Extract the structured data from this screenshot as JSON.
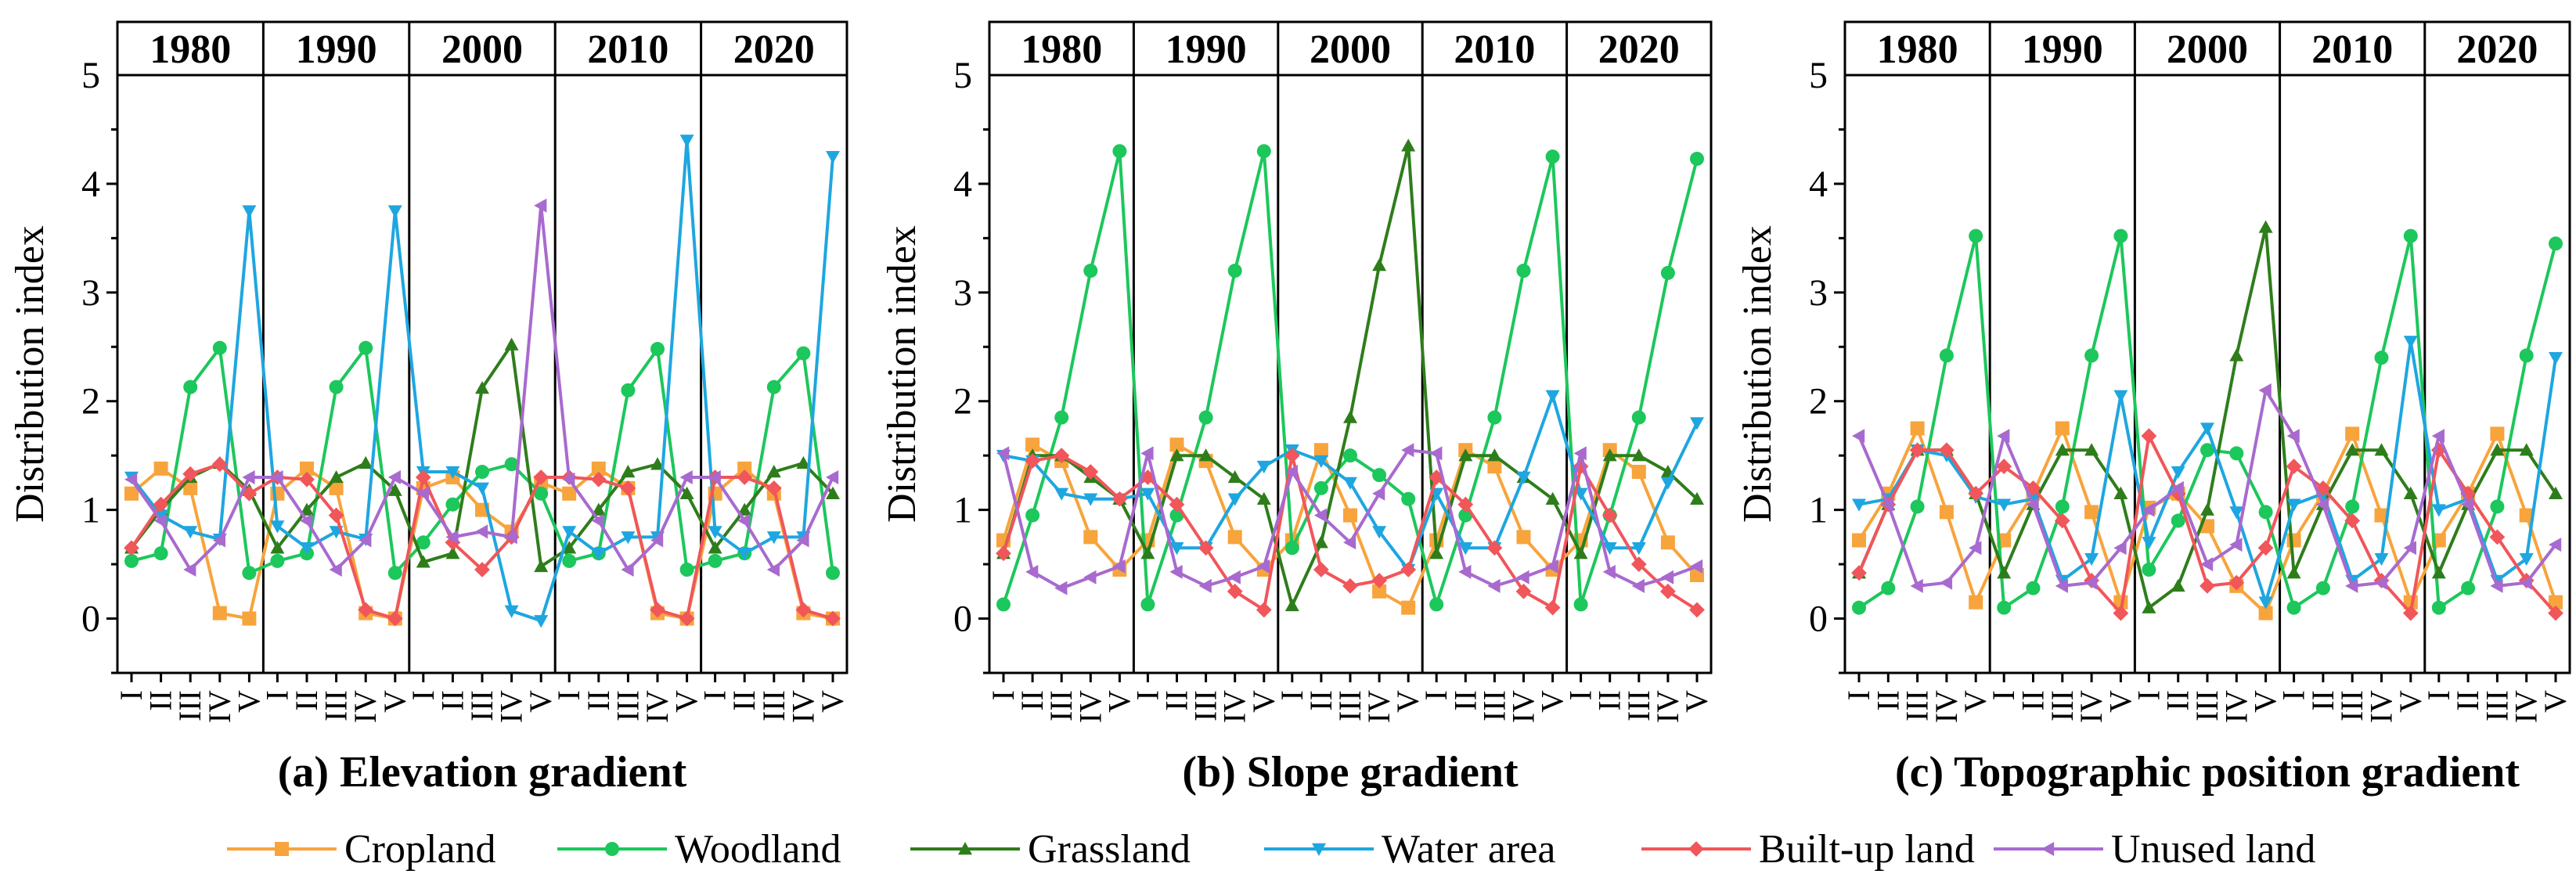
{
  "figure": {
    "ylabel": "Distribution index",
    "years": [
      "1980",
      "1990",
      "2000",
      "2010",
      "2020"
    ],
    "ticks": [
      "I",
      "II",
      "III",
      "IV",
      "V"
    ],
    "yticks": [
      0,
      1,
      2,
      3,
      4,
      5
    ],
    "ylim": [
      -0.5,
      5
    ]
  },
  "legend": [
    {
      "name": "Cropland",
      "color": "#F7A43C",
      "marker": "square"
    },
    {
      "name": "Woodland",
      "color": "#1CC75B",
      "marker": "circle"
    },
    {
      "name": "Grassland",
      "color": "#2E7D1B",
      "marker": "triangle-up"
    },
    {
      "name": "Water area",
      "color": "#1EA6E0",
      "marker": "triangle-down"
    },
    {
      "name": "Built-up land",
      "color": "#F0565A",
      "marker": "diamond"
    },
    {
      "name": "Unused land",
      "color": "#A86ACF",
      "marker": "triangle-left"
    }
  ],
  "chart_data": [
    {
      "type": "line",
      "title": "(a) Elevation gradient",
      "ylabel": "Distribution index",
      "ylim": [
        -0.5,
        5
      ],
      "groups": [
        "1980",
        "1990",
        "2000",
        "2010",
        "2020"
      ],
      "categories": [
        "I",
        "II",
        "III",
        "IV",
        "V"
      ],
      "series": [
        {
          "name": "Cropland",
          "values": [
            [
              1.15,
              1.38,
              1.2,
              0.05,
              0.0
            ],
            [
              1.15,
              1.38,
              1.2,
              0.05,
              0.0
            ],
            [
              1.2,
              1.3,
              1.0,
              0.8,
              1.25
            ],
            [
              1.15,
              1.38,
              1.2,
              0.05,
              0.0
            ],
            [
              1.15,
              1.38,
              1.15,
              0.05,
              0.0
            ]
          ]
        },
        {
          "name": "Woodland",
          "values": [
            [
              0.53,
              0.6,
              2.13,
              2.49,
              0.42
            ],
            [
              0.53,
              0.6,
              2.13,
              2.49,
              0.42
            ],
            [
              0.7,
              1.05,
              1.35,
              1.42,
              1.15
            ],
            [
              0.53,
              0.6,
              2.1,
              2.48,
              0.45
            ],
            [
              0.53,
              0.6,
              2.13,
              2.44,
              0.42
            ]
          ]
        },
        {
          "name": "Grassland",
          "values": [
            [
              0.65,
              1.0,
              1.3,
              1.43,
              1.18
            ],
            [
              0.65,
              1.0,
              1.3,
              1.43,
              1.18
            ],
            [
              0.52,
              0.6,
              2.12,
              2.52,
              0.48
            ],
            [
              0.65,
              1.0,
              1.35,
              1.42,
              1.15
            ],
            [
              0.65,
              1.0,
              1.35,
              1.43,
              1.15
            ]
          ]
        },
        {
          "name": "Water area",
          "values": [
            [
              1.3,
              0.95,
              0.8,
              0.73,
              3.75
            ],
            [
              0.85,
              0.65,
              0.8,
              0.73,
              3.75
            ],
            [
              1.35,
              1.35,
              1.2,
              0.07,
              -0.02
            ],
            [
              0.8,
              0.6,
              0.75,
              0.75,
              4.4
            ],
            [
              0.8,
              0.6,
              0.75,
              0.75,
              4.25
            ]
          ]
        },
        {
          "name": "Built-up land",
          "values": [
            [
              0.65,
              1.05,
              1.33,
              1.42,
              1.15
            ],
            [
              1.3,
              1.28,
              0.95,
              0.08,
              0.0
            ],
            [
              1.3,
              0.7,
              0.45,
              0.75,
              1.3
            ],
            [
              1.3,
              1.28,
              1.2,
              0.08,
              0.0
            ],
            [
              1.3,
              1.3,
              1.2,
              0.08,
              0.0
            ]
          ]
        },
        {
          "name": "Unused land",
          "values": [
            [
              1.28,
              0.9,
              0.45,
              0.72,
              1.3
            ],
            [
              1.3,
              0.9,
              0.45,
              0.72,
              1.3
            ],
            [
              1.15,
              0.75,
              0.8,
              0.75,
              3.8
            ],
            [
              1.28,
              0.9,
              0.45,
              0.72,
              1.3
            ],
            [
              1.3,
              0.9,
              0.45,
              0.72,
              1.3
            ]
          ]
        }
      ]
    },
    {
      "type": "line",
      "title": "(b) Slope gradient",
      "ylabel": "Distribution index",
      "ylim": [
        -0.5,
        5
      ],
      "groups": [
        "1980",
        "1990",
        "2000",
        "2010",
        "2020"
      ],
      "categories": [
        "I",
        "II",
        "III",
        "IV",
        "V"
      ],
      "series": [
        {
          "name": "Cropland",
          "values": [
            [
              0.72,
              1.6,
              1.45,
              0.75,
              0.45
            ],
            [
              0.72,
              1.6,
              1.45,
              0.75,
              0.45
            ],
            [
              0.72,
              1.55,
              0.95,
              0.25,
              0.1
            ],
            [
              0.72,
              1.55,
              1.4,
              0.75,
              0.45
            ],
            [
              0.72,
              1.55,
              1.35,
              0.7,
              0.4
            ]
          ]
        },
        {
          "name": "Woodland",
          "values": [
            [
              0.13,
              0.95,
              1.85,
              3.2,
              4.3
            ],
            [
              0.13,
              0.95,
              1.85,
              3.2,
              4.3
            ],
            [
              0.65,
              1.2,
              1.5,
              1.32,
              1.1
            ],
            [
              0.13,
              0.95,
              1.85,
              3.2,
              4.25
            ],
            [
              0.13,
              0.95,
              1.85,
              3.18,
              4.23
            ]
          ]
        },
        {
          "name": "Grassland",
          "values": [
            [
              0.6,
              1.5,
              1.5,
              1.3,
              1.1
            ],
            [
              0.6,
              1.5,
              1.5,
              1.3,
              1.1
            ],
            [
              0.12,
              0.7,
              1.85,
              3.25,
              4.35
            ],
            [
              0.6,
              1.5,
              1.5,
              1.3,
              1.1
            ],
            [
              0.6,
              1.5,
              1.5,
              1.35,
              1.1
            ]
          ]
        },
        {
          "name": "Water area",
          "values": [
            [
              1.5,
              1.45,
              1.15,
              1.1,
              1.1
            ],
            [
              1.15,
              0.65,
              0.65,
              1.1,
              1.4
            ],
            [
              1.55,
              1.45,
              1.25,
              0.8,
              0.45
            ],
            [
              1.15,
              0.65,
              0.65,
              1.3,
              2.05
            ],
            [
              1.15,
              0.65,
              0.65,
              1.25,
              1.8
            ]
          ]
        },
        {
          "name": "Built-up land",
          "values": [
            [
              0.6,
              1.45,
              1.5,
              1.35,
              1.1
            ],
            [
              1.3,
              1.05,
              0.65,
              0.25,
              0.08
            ],
            [
              1.5,
              0.45,
              0.3,
              0.35,
              0.45
            ],
            [
              1.3,
              1.05,
              0.65,
              0.25,
              0.1
            ],
            [
              1.4,
              0.95,
              0.5,
              0.25,
              0.08
            ]
          ]
        },
        {
          "name": "Unused land",
          "values": [
            [
              1.52,
              0.43,
              0.28,
              0.38,
              0.48
            ],
            [
              1.52,
              0.43,
              0.3,
              0.38,
              0.48
            ],
            [
              1.35,
              0.95,
              0.7,
              1.15,
              1.55
            ],
            [
              1.52,
              0.43,
              0.3,
              0.38,
              0.48
            ],
            [
              1.52,
              0.43,
              0.3,
              0.38,
              0.48
            ]
          ]
        }
      ]
    },
    {
      "type": "line",
      "title": "(c) Topographic position gradient",
      "ylabel": "Distribution index",
      "ylim": [
        -0.5,
        5
      ],
      "groups": [
        "1980",
        "1990",
        "2000",
        "2010",
        "2020"
      ],
      "categories": [
        "I",
        "II",
        "III",
        "IV",
        "V"
      ],
      "series": [
        {
          "name": "Cropland",
          "values": [
            [
              0.72,
              1.15,
              1.75,
              0.98,
              0.15
            ],
            [
              0.72,
              1.15,
              1.75,
              0.98,
              0.15
            ],
            [
              1.02,
              1.15,
              0.85,
              0.3,
              0.05
            ],
            [
              0.72,
              1.15,
              1.7,
              0.95,
              0.15
            ],
            [
              0.72,
              1.15,
              1.7,
              0.95,
              0.15
            ]
          ]
        },
        {
          "name": "Woodland",
          "values": [
            [
              0.1,
              0.28,
              1.03,
              2.42,
              3.52
            ],
            [
              0.1,
              0.28,
              1.03,
              2.42,
              3.52
            ],
            [
              0.45,
              0.9,
              1.55,
              1.52,
              0.98
            ],
            [
              0.1,
              0.28,
              1.03,
              2.4,
              3.52
            ],
            [
              0.1,
              0.28,
              1.03,
              2.42,
              3.45
            ]
          ]
        },
        {
          "name": "Grassland",
          "values": [
            [
              0.42,
              1.05,
              1.55,
              1.55,
              1.15
            ],
            [
              0.42,
              1.05,
              1.55,
              1.55,
              1.15
            ],
            [
              0.1,
              0.3,
              1.0,
              2.42,
              3.6
            ],
            [
              0.42,
              1.05,
              1.55,
              1.55,
              1.15
            ],
            [
              0.42,
              1.05,
              1.55,
              1.55,
              1.15
            ]
          ]
        },
        {
          "name": "Water area",
          "values": [
            [
              1.05,
              1.1,
              1.55,
              1.5,
              1.12
            ],
            [
              1.05,
              1.1,
              0.35,
              0.55,
              2.05
            ],
            [
              0.7,
              1.35,
              1.75,
              0.98,
              0.15
            ],
            [
              1.05,
              1.15,
              0.35,
              0.55,
              2.55
            ],
            [
              1.0,
              1.1,
              0.35,
              0.55,
              2.4
            ]
          ]
        },
        {
          "name": "Built-up land",
          "values": [
            [
              0.42,
              1.05,
              1.55,
              1.55,
              1.15
            ],
            [
              1.4,
              1.2,
              0.9,
              0.35,
              0.05
            ],
            [
              1.68,
              1.15,
              0.3,
              0.33,
              0.65
            ],
            [
              1.4,
              1.2,
              0.9,
              0.35,
              0.05
            ],
            [
              1.55,
              1.15,
              0.75,
              0.35,
              0.05
            ]
          ]
        },
        {
          "name": "Unused land",
          "values": [
            [
              1.68,
              1.05,
              0.3,
              0.33,
              0.65
            ],
            [
              1.68,
              1.05,
              0.3,
              0.33,
              0.65
            ],
            [
              1.0,
              1.2,
              0.5,
              0.68,
              2.1
            ],
            [
              1.68,
              1.05,
              0.3,
              0.33,
              0.65
            ],
            [
              1.68,
              1.05,
              0.3,
              0.33,
              0.68
            ]
          ]
        }
      ]
    }
  ]
}
